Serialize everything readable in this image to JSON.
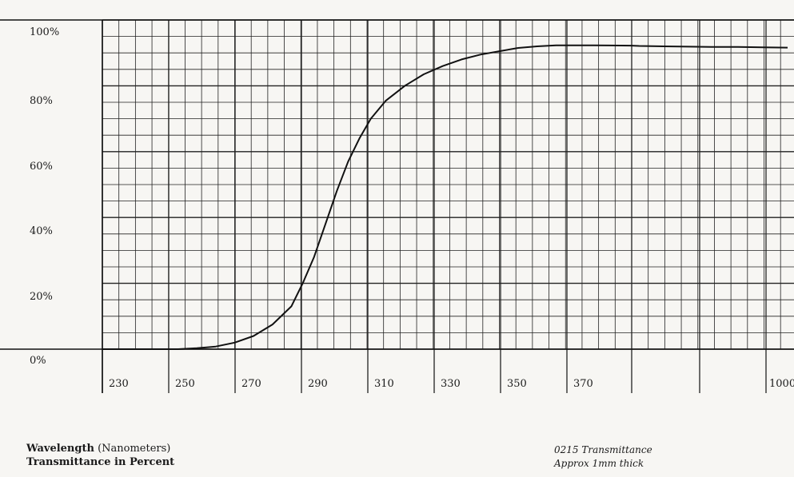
{
  "chart_data": {
    "type": "line",
    "y_tick_labels": [
      "100%",
      "80%",
      "60%",
      "40%",
      "20%",
      "0%"
    ],
    "y_ticks": [
      100,
      80,
      60,
      40,
      20,
      0
    ],
    "x_tick_labels": [
      "230",
      "250",
      "270",
      "290",
      "310",
      "330",
      "350",
      "370",
      "1000"
    ],
    "ylim": [
      0,
      100
    ],
    "grid": true,
    "series": [
      {
        "x": [
          230,
          240,
          250,
          255,
          260,
          265,
          270,
          275,
          280,
          283,
          286,
          289,
          292,
          295,
          298,
          301,
          305,
          310,
          315,
          320,
          325,
          330,
          335,
          340,
          345,
          350,
          360,
          370,
          400,
          500,
          600,
          700,
          800,
          900,
          1000
        ],
        "y": [
          0,
          0,
          0,
          0.3,
          0.8,
          2,
          4,
          7.5,
          13,
          20,
          28,
          38,
          48,
          57,
          64,
          70,
          75.5,
          80,
          83.5,
          86,
          88,
          89.5,
          90.5,
          91.5,
          92,
          92.3,
          92.3,
          92.2,
          92.1,
          92,
          91.9,
          91.8,
          91.8,
          91.7,
          91.6
        ]
      }
    ],
    "xlabel_bold": "Wavelength",
    "xlabel_rest": " (Nanometers)",
    "ylabel": "Transmittance in Percent",
    "note_line1": "0215 Transmittance",
    "note_line2": "Approx 1mm thick"
  }
}
